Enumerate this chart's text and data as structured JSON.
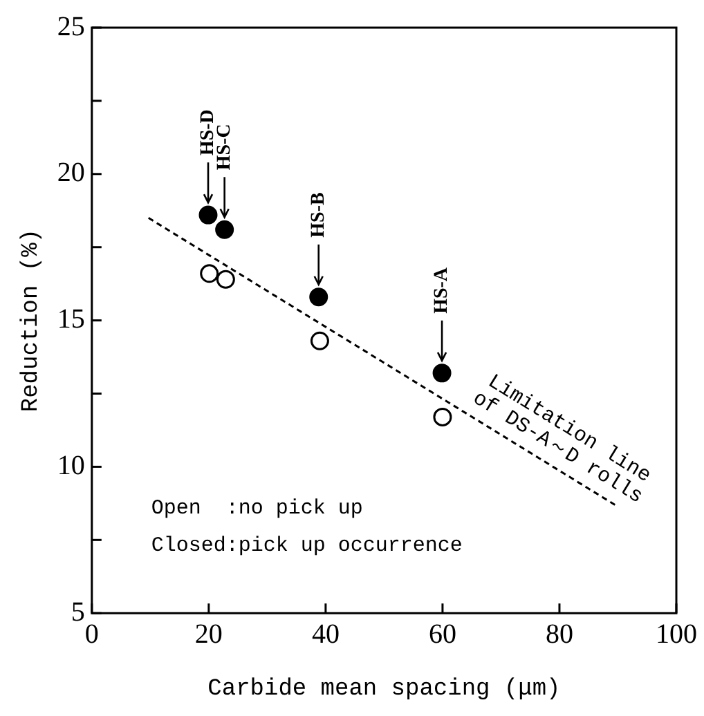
{
  "chart_data": {
    "type": "scatter",
    "xlabel": "Carbide mean spacing (μm)",
    "ylabel": "Reduction (%)",
    "xlim": [
      0,
      100
    ],
    "xticks": [
      0,
      20,
      40,
      60,
      80,
      100
    ],
    "ylim": [
      5,
      25
    ],
    "yticks": [
      5,
      {
        "value": 7.5,
        "label": null
      },
      10,
      {
        "value": 12.5,
        "label": null
      },
      15,
      {
        "value": 17.5,
        "label": null
      },
      20,
      {
        "value": 22.5,
        "label": null
      },
      25
    ],
    "grid": false,
    "legend": false,
    "series": [
      {
        "type": "scatter",
        "marker": "circle",
        "color": "#000000",
        "x": [
          19.9,
          22.7,
          38.8,
          59.9
        ],
        "values": [
          18.6,
          18.1,
          15.8,
          13.2
        ]
      },
      {
        "type": "scatter",
        "marker": "circle",
        "color": "#ffffff",
        "x": [
          20.1,
          22.9,
          39.0,
          60.0
        ],
        "values": [
          16.6,
          16.4,
          14.3,
          11.7
        ]
      },
      {
        "type": "line",
        "marker": "none",
        "line_style": "dashed",
        "color": "#000000",
        "x": [
          9.7,
          89.5
        ],
        "values": [
          18.5,
          8.7
        ]
      }
    ],
    "annotations": [
      {
        "text": "HS-D",
        "x": 19.9,
        "y": 18.6
      },
      {
        "text": "HS-C",
        "x": 22.7,
        "y": 18.1
      },
      {
        "text": "HS-B",
        "x": 38.8,
        "y": 15.8
      },
      {
        "text": "HS-A",
        "x": 59.9,
        "y": 13.2
      },
      {
        "text": "Limitation line of DS-A～D rolls",
        "x": 78,
        "y": 10.1
      },
      "Open  :no pick up",
      "Closed:pick up occurrence"
    ]
  }
}
